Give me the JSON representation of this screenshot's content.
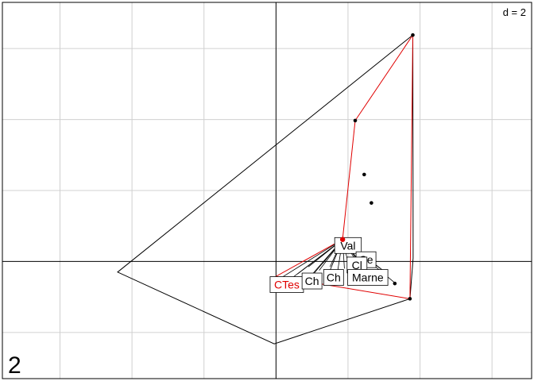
{
  "chart_data": {
    "type": "scatter",
    "title": "",
    "xlabel": "",
    "ylabel": "",
    "grid": true,
    "grid_step": 2,
    "xlim": [
      -7.6,
      7.1
    ],
    "ylim": [
      -3.3,
      7.3
    ],
    "scale_label": "d = 2",
    "panel_label": "2",
    "axes_cross": [
      0,
      0
    ],
    "outer_polygon": [
      [
        3.8,
        6.38
      ],
      [
        3.81,
        0.1
      ],
      [
        3.72,
        -1.05
      ],
      [
        -0.05,
        -2.32
      ],
      [
        -4.4,
        -0.3
      ],
      [
        3.8,
        6.38
      ]
    ],
    "red_polygon": [
      [
        3.8,
        6.38
      ],
      [
        2.2,
        3.97
      ],
      [
        1.85,
        0.62
      ],
      [
        0.0,
        -0.42
      ],
      [
        3.72,
        -1.05
      ],
      [
        3.8,
        6.38
      ]
    ],
    "points": [
      [
        3.8,
        6.38
      ],
      [
        2.2,
        3.97
      ],
      [
        2.45,
        2.45
      ],
      [
        2.65,
        1.65
      ],
      [
        3.72,
        -1.05
      ],
      [
        3.3,
        -0.62
      ],
      [
        1.85,
        0.62
      ]
    ],
    "centre_point": [
      1.85,
      0.62
    ],
    "class_labels": [
      {
        "text": "Val",
        "x": 2.0,
        "y": 0.45,
        "red": false
      },
      {
        "text": "Ce",
        "x": 2.5,
        "y": 0.05,
        "red": false
      },
      {
        "text": "Cl",
        "x": 2.25,
        "y": -0.1,
        "red": false
      },
      {
        "text": "Marne",
        "x": 2.55,
        "y": -0.45,
        "red": false
      },
      {
        "text": "Ch",
        "x": 1.6,
        "y": -0.45,
        "red": false
      },
      {
        "text": "CTes",
        "x": 0.3,
        "y": -0.65,
        "red": true
      },
      {
        "text": "Ch",
        "x": 1.0,
        "y": -0.55,
        "red": false
      }
    ],
    "class_link_points": [
      [
        0.0,
        -0.55
      ],
      [
        0.4,
        -0.5
      ],
      [
        0.6,
        -0.35
      ],
      [
        0.8,
        -0.6
      ],
      [
        1.0,
        -0.4
      ],
      [
        1.2,
        -0.25
      ],
      [
        1.4,
        -0.5
      ],
      [
        1.5,
        -0.15
      ],
      [
        1.7,
        -0.35
      ],
      [
        1.9,
        -0.2
      ],
      [
        2.1,
        -0.45
      ],
      [
        2.3,
        -0.1
      ],
      [
        2.5,
        -0.3
      ],
      [
        2.7,
        -0.5
      ],
      [
        2.9,
        -0.2
      ],
      [
        3.1,
        -0.35
      ],
      [
        3.3,
        -0.6
      ],
      [
        1.3,
        -0.05
      ],
      [
        2.6,
        0.0
      ],
      [
        0.9,
        -0.15
      ]
    ]
  }
}
